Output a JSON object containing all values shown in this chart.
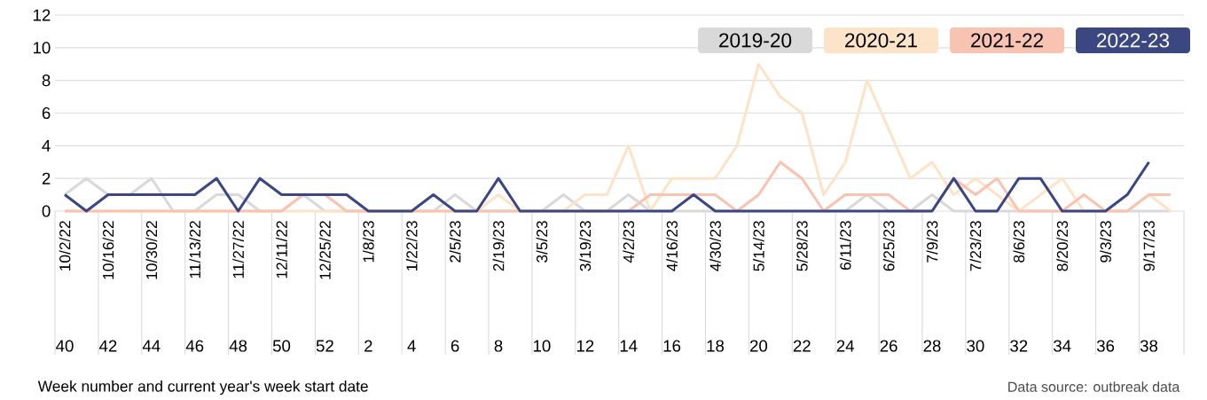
{
  "chart_data": {
    "type": "line",
    "categories": [
      "10/2/22",
      null,
      "10/16/22",
      null,
      "10/30/22",
      null,
      "11/13/22",
      null,
      "11/27/22",
      null,
      "12/11/22",
      null,
      "12/25/22",
      null,
      "1/8/23",
      null,
      "1/22/23",
      null,
      "2/5/23",
      null,
      "2/19/23",
      null,
      "3/5/23",
      null,
      "3/19/23",
      null,
      "4/2/23",
      null,
      "4/16/23",
      null,
      "4/30/23",
      null,
      "5/14/23",
      null,
      "5/28/23",
      null,
      "6/11/23",
      null,
      "6/25/23",
      null,
      "7/9/23",
      null,
      "7/23/23",
      null,
      "8/6/23",
      null,
      "8/20/23",
      null,
      "9/3/23",
      null,
      "9/17/23",
      null
    ],
    "annotations": [
      "40",
      "42",
      "44",
      "46",
      "48",
      "50",
      "52",
      "2",
      "4",
      "6",
      "8",
      "10",
      "12",
      "14",
      "16",
      "18",
      "20",
      "22",
      "24",
      "26",
      "28",
      "30",
      "32",
      "34",
      "36",
      "38",
      "Week number and current year's week start date",
      "Data source: outbreak data"
    ],
    "series": [
      {
        "name": "2019-20",
        "color": "#d9d9d9",
        "values": [
          1,
          2,
          1,
          1,
          2,
          0,
          0,
          1,
          1,
          0,
          0,
          1,
          0,
          0,
          0,
          0,
          0,
          0,
          1,
          0,
          0,
          0,
          0,
          1,
          0,
          0,
          1,
          0,
          0,
          0,
          0,
          0,
          0,
          0,
          0,
          0,
          0,
          1,
          0,
          0,
          1,
          0,
          0,
          0,
          0,
          0,
          0,
          0,
          0,
          0,
          0,
          0
        ]
      },
      {
        "name": "2020-21",
        "color": "#fde4c8",
        "values": [
          0,
          0,
          0,
          0,
          0,
          0,
          0,
          0,
          0,
          0,
          0,
          0,
          0,
          0,
          0,
          0,
          0,
          0,
          0,
          0,
          1,
          0,
          0,
          0,
          1,
          1,
          4,
          0,
          2,
          2,
          2,
          4,
          9,
          7,
          6,
          1,
          3,
          8,
          5,
          2,
          3,
          1,
          2,
          1,
          0,
          1,
          2,
          0,
          0,
          0,
          1,
          0
        ]
      },
      {
        "name": "2021-22",
        "color": "#f9c3b2",
        "values": [
          0,
          0,
          0,
          0,
          0,
          0,
          0,
          0,
          0,
          0,
          0,
          1,
          1,
          0,
          0,
          0,
          0,
          0,
          0,
          0,
          0,
          0,
          0,
          0,
          0,
          0,
          0,
          1,
          1,
          1,
          1,
          0,
          1,
          3,
          2,
          0,
          1,
          1,
          1,
          0,
          0,
          2,
          1,
          2,
          0,
          0,
          0,
          1,
          0,
          0,
          1,
          1
        ]
      },
      {
        "name": "2022-23",
        "color": "#3b4781",
        "values": [
          1,
          0,
          1,
          1,
          1,
          1,
          1,
          2,
          0,
          2,
          1,
          1,
          1,
          1,
          0,
          0,
          0,
          1,
          0,
          0,
          2,
          0,
          0,
          0,
          0,
          0,
          0,
          0,
          0,
          1,
          0,
          0,
          0,
          0,
          0,
          0,
          0,
          0,
          0,
          0,
          0,
          2,
          0,
          0,
          2,
          2,
          0,
          0,
          0,
          1,
          3,
          null
        ]
      }
    ],
    "ylim": [
      0,
      12
    ],
    "yticks": [
      0,
      2,
      4,
      6,
      8,
      10,
      12
    ],
    "grid": "y",
    "legend": "top right",
    "marker": "none",
    "line_style": "solid"
  }
}
